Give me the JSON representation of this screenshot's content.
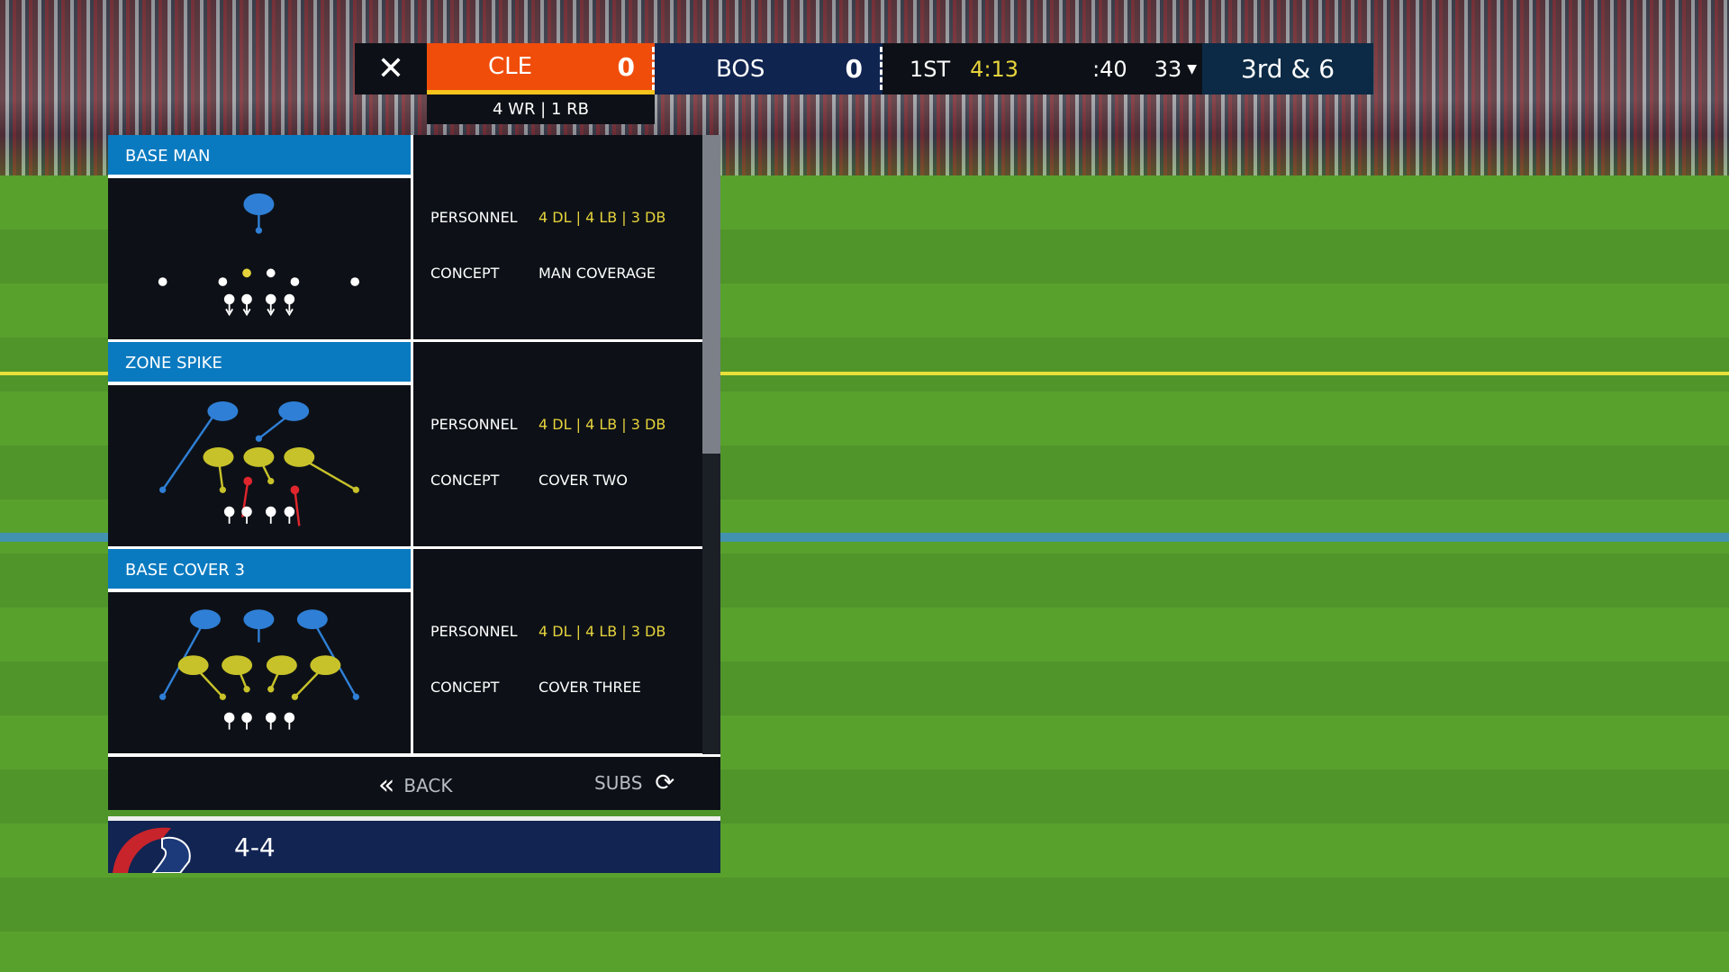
{
  "scoreboard": {
    "home": {
      "abbr": "CLE",
      "score": "0",
      "color": "#f04d0a"
    },
    "away": {
      "abbr": "BOS",
      "score": "0",
      "color": "#102450"
    },
    "quarter": "1ST",
    "game_clock": "4:13",
    "play_clock": ":40",
    "yard_line": "33",
    "yard_arrow": "▼",
    "down_distance": "3rd & 6",
    "offense_personnel": "4 WR | 1 RB"
  },
  "plays": [
    {
      "name": "BASE MAN",
      "personnel_label": "PERSONNEL",
      "personnel": "4 DL | 4 LB | 3 DB",
      "concept_label": "CONCEPT",
      "concept": "MAN COVERAGE"
    },
    {
      "name": "ZONE SPIKE",
      "personnel_label": "PERSONNEL",
      "personnel": "4 DL | 4 LB | 3 DB",
      "concept_label": "CONCEPT",
      "concept": "COVER TWO"
    },
    {
      "name": "BASE COVER 3",
      "personnel_label": "PERSONNEL",
      "personnel": "4 DL | 4 LB | 3 DB",
      "concept_label": "CONCEPT",
      "concept": "COVER THREE"
    }
  ],
  "footer": {
    "back_label": "BACK",
    "subs_label": "SUBS"
  },
  "formation": "4-4",
  "colors": {
    "accent": "#0a7ac0",
    "highlight": "#e6d33c",
    "zone_blue": "#2f7fd6",
    "zone_yellow": "#c8c22a",
    "blitz_red": "#e0262c"
  }
}
